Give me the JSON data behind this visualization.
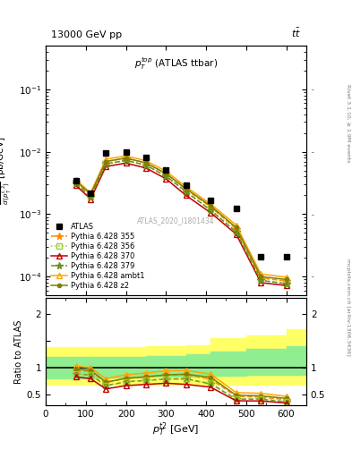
{
  "title_top": "13000 GeV pp",
  "title_right": "t$\\bar{t}$",
  "inner_title": "$p_T^{top}$ (ATLAS ttbar)",
  "watermark": "ATLAS_2020_I1801434",
  "right_label": "Rivet 3.1.10, ≥ 1.9M events",
  "right_label2": "mcplots.cern.ch [arXiv:1306.3436]",
  "xlabel": "$p_T^{t2}$ [GeV]",
  "ylabel_ratio": "Ratio to ATLAS",
  "pt_x": [
    75,
    112,
    150,
    200,
    250,
    300,
    350,
    412,
    475,
    537,
    600
  ],
  "atlas_y": [
    0.0035,
    0.0022,
    0.0096,
    0.0099,
    0.008,
    0.0052,
    0.0029,
    0.00165,
    0.00125,
    0.00021,
    0.00021
  ],
  "p355_y": [
    0.0033,
    0.00205,
    0.007,
    0.0079,
    0.0066,
    0.0045,
    0.0025,
    0.0013,
    0.00058,
    9.5e-05,
    8.5e-05
  ],
  "p356_y": [
    0.0031,
    0.0019,
    0.0064,
    0.0073,
    0.0061,
    0.0041,
    0.00225,
    0.00118,
    0.00053,
    8.8e-05,
    7.8e-05
  ],
  "p370_y": [
    0.0029,
    0.00175,
    0.0058,
    0.0066,
    0.0055,
    0.0037,
    0.002,
    0.00105,
    0.00048,
    8e-05,
    7.2e-05
  ],
  "p379_y": [
    0.0031,
    0.0019,
    0.0064,
    0.0073,
    0.0061,
    0.0041,
    0.0023,
    0.00115,
    0.00052,
    8.7e-05,
    7.7e-05
  ],
  "pambt_y": [
    0.0036,
    0.0022,
    0.0076,
    0.0086,
    0.0072,
    0.0049,
    0.00275,
    0.00145,
    0.00067,
    0.00011,
    9.8e-05
  ],
  "pz2_y": [
    0.0034,
    0.0021,
    0.007,
    0.00795,
    0.00665,
    0.0045,
    0.00255,
    0.00135,
    0.00061,
    0.0001,
    9e-05
  ],
  "color_355": "#FF8C00",
  "color_356": "#9ACD32",
  "color_370": "#C00000",
  "color_379": "#6B8E23",
  "color_ambt": "#FFA500",
  "color_z2": "#808000",
  "ylim_main": [
    5e-05,
    0.5
  ],
  "xlim": [
    0,
    650
  ],
  "band_x": [
    0,
    50,
    150,
    250,
    350,
    412,
    500,
    600,
    650
  ],
  "yellow_hi": [
    1.38,
    1.38,
    1.38,
    1.4,
    1.42,
    1.55,
    1.6,
    1.72,
    1.72
  ],
  "yellow_lo": [
    0.68,
    0.68,
    0.68,
    0.68,
    0.68,
    0.68,
    0.68,
    0.68,
    0.68
  ],
  "green_hi": [
    1.2,
    1.2,
    1.2,
    1.22,
    1.25,
    1.3,
    1.35,
    1.4,
    1.4
  ],
  "green_lo": [
    0.8,
    0.8,
    0.82,
    0.83,
    0.84,
    0.85,
    0.86,
    0.86,
    0.86
  ]
}
